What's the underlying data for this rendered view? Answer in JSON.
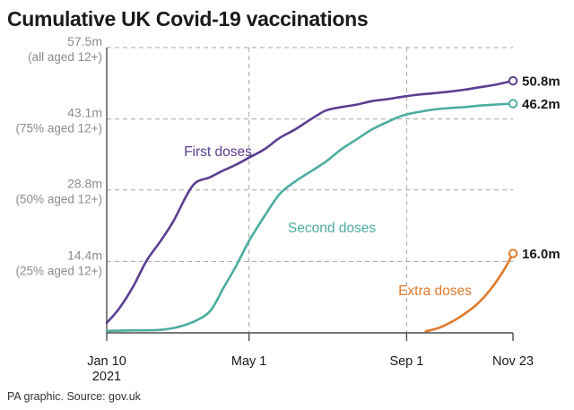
{
  "chart_data": {
    "type": "line",
    "title": "Cumulative UK Covid-19 vaccinations",
    "source": "PA graphic. Source: gov.uk",
    "ylim": [
      0,
      57.5
    ],
    "xlim": [
      "2021-01-10",
      "2021-11-23"
    ],
    "grid": true,
    "y_ticks": [
      {
        "value": 57.5,
        "label": "57.5m",
        "sublabel": "(all aged 12+)"
      },
      {
        "value": 43.1,
        "label": "43.1m",
        "sublabel": "(75% aged 12+)"
      },
      {
        "value": 28.8,
        "label": "28.8m",
        "sublabel": "(50% aged 12+)"
      },
      {
        "value": 14.4,
        "label": "14.4m",
        "sublabel": "(25% aged 12+)"
      }
    ],
    "x_ticks": [
      {
        "date": "2021-01-10",
        "label": "Jan 10",
        "sublabel": "2021"
      },
      {
        "date": "2021-05-01",
        "label": "May 1",
        "sublabel": ""
      },
      {
        "date": "2021-09-01",
        "label": "Sep 1",
        "sublabel": ""
      },
      {
        "date": "2021-11-23",
        "label": "Nov 23",
        "sublabel": ""
      }
    ],
    "series": [
      {
        "name": "First doses",
        "color": "#5b3e91",
        "end_label": "50.8m",
        "x": [
          "2021-01-10",
          "2021-01-20",
          "2021-01-31",
          "2021-02-10",
          "2021-02-21",
          "2021-03-03",
          "2021-03-14",
          "2021-03-21",
          "2021-03-31",
          "2021-04-10",
          "2021-04-21",
          "2021-05-01",
          "2021-05-13",
          "2021-05-25",
          "2021-06-06",
          "2021-06-18",
          "2021-06-30",
          "2021-07-12",
          "2021-07-24",
          "2021-08-05",
          "2021-08-17",
          "2021-08-29",
          "2021-09-10",
          "2021-09-22",
          "2021-10-04",
          "2021-10-16",
          "2021-10-28",
          "2021-11-09",
          "2021-11-23"
        ],
        "y": [
          2.0,
          5.0,
          9.5,
          14.5,
          18.5,
          22.5,
          28.0,
          30.4,
          31.3,
          32.6,
          33.9,
          35.3,
          37.0,
          39.3,
          41.0,
          43.0,
          44.8,
          45.5,
          46.0,
          46.7,
          47.1,
          47.6,
          48.0,
          48.3,
          48.6,
          49.0,
          49.5,
          50.0,
          50.8
        ]
      },
      {
        "name": "Second doses",
        "color": "#4cada1",
        "end_label": "46.2m",
        "x": [
          "2021-01-10",
          "2021-02-01",
          "2021-02-21",
          "2021-03-07",
          "2021-03-21",
          "2021-04-01",
          "2021-04-11",
          "2021-04-21",
          "2021-05-01",
          "2021-05-13",
          "2021-05-25",
          "2021-06-06",
          "2021-06-18",
          "2021-06-30",
          "2021-07-12",
          "2021-07-24",
          "2021-08-05",
          "2021-08-17",
          "2021-08-29",
          "2021-09-10",
          "2021-09-22",
          "2021-10-04",
          "2021-10-16",
          "2021-10-28",
          "2021-11-09",
          "2021-11-23"
        ],
        "y": [
          0.4,
          0.5,
          0.6,
          1.2,
          2.5,
          4.5,
          9.0,
          13.5,
          18.5,
          23.5,
          28.0,
          30.5,
          32.5,
          34.5,
          37.0,
          39.0,
          41.0,
          42.5,
          43.8,
          44.5,
          45.0,
          45.3,
          45.5,
          45.8,
          46.0,
          46.2
        ]
      },
      {
        "name": "Extra doses",
        "color": "#e07a2e",
        "end_label": "16.0m",
        "x": [
          "2021-09-16",
          "2021-09-26",
          "2021-10-06",
          "2021-10-16",
          "2021-10-26",
          "2021-11-05",
          "2021-11-15",
          "2021-11-23"
        ],
        "y": [
          0.3,
          1.0,
          2.2,
          3.8,
          5.8,
          8.6,
          12.3,
          16.0
        ]
      }
    ]
  }
}
